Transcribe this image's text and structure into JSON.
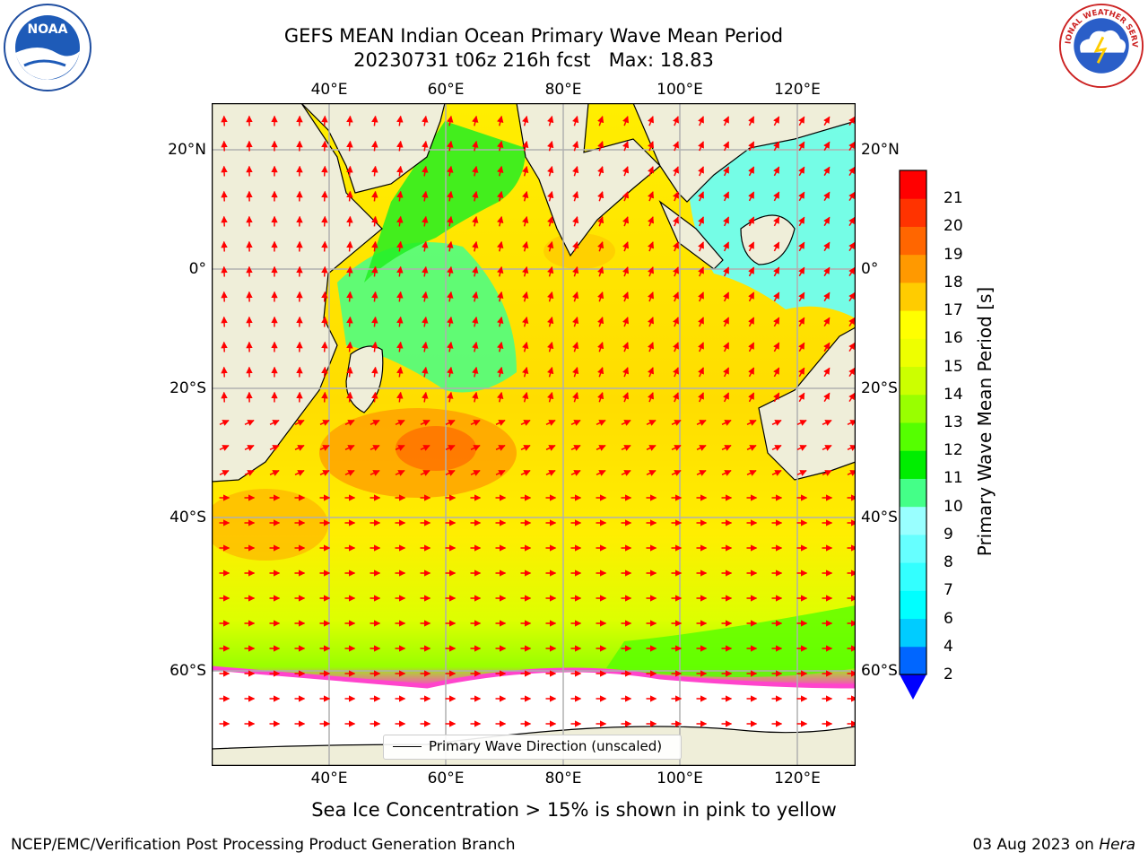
{
  "title_line1": "GEFS MEAN Indian Ocean Primary Wave Mean Period",
  "title_line2": "20230731 t06z 216h fcst   Max: 18.83",
  "lon_ticks": [
    "40°E",
    "60°E",
    "80°E",
    "100°E",
    "120°E"
  ],
  "lat_ticks": [
    "20°N",
    "0°",
    "20°S",
    "40°S",
    "60°S"
  ],
  "colorbar": {
    "label": "Primary Wave Mean Period [s]",
    "ticks": [
      "2",
      "4",
      "6",
      "7",
      "8",
      "9",
      "10",
      "11",
      "12",
      "13",
      "14",
      "15",
      "16",
      "17",
      "18",
      "19",
      "20",
      "21"
    ],
    "colors": [
      "#0066ff",
      "#00ccff",
      "#00ffff",
      "#33ffff",
      "#66ffff",
      "#99ffff",
      "#44ff88",
      "#00ee00",
      "#55ff00",
      "#99ff00",
      "#ccff00",
      "#eeff00",
      "#ffff00",
      "#ffcc00",
      "#ff9900",
      "#ff6600",
      "#ff3300",
      "#ff0000"
    ],
    "extend_color": "#0000ff"
  },
  "legend_label": "Primary Wave Direction (unscaled)",
  "subcaption": "Sea Ice Concentration > 15% is shown in pink to yellow",
  "footer_left": "NCEP/EMC/Verification Post Processing Product Generation Branch",
  "footer_date": "03 Aug 2023 on",
  "footer_host": "Hera",
  "logos": {
    "left": "noaa-logo",
    "right": "nws-logo"
  },
  "noaa_logo_text": "NOAA",
  "nws_ring_text": "NATIONAL WEATHER SERVICE",
  "map_colors": {
    "land": "#efeed9",
    "sea_ice": "#ffffff",
    "arrows": "#ff0000",
    "grid": "#b0b0b0"
  }
}
